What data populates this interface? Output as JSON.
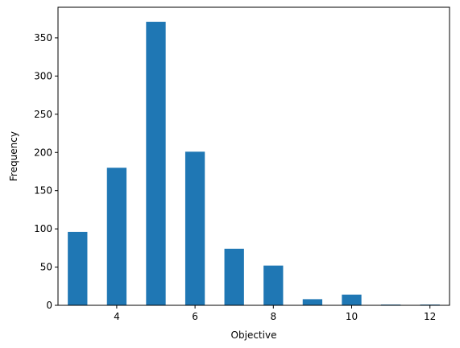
{
  "chart_data": {
    "type": "bar",
    "title": "",
    "xlabel": "Objective",
    "ylabel": "Frequency",
    "xlim": [
      2.5,
      12.5
    ],
    "ylim": [
      0,
      390
    ],
    "bar_width": 0.5,
    "bar_color": "#1f77b4",
    "grid": false,
    "legend": "none",
    "x": [
      3,
      4,
      5,
      6,
      7,
      8,
      9,
      10,
      11,
      12
    ],
    "values": [
      96,
      180,
      371,
      201,
      74,
      52,
      8,
      14,
      1,
      1
    ],
    "x_ticks": [
      4,
      6,
      8,
      10,
      12
    ],
    "x_tick_labels": [
      "4",
      "6",
      "8",
      "10",
      "12"
    ],
    "y_ticks": [
      0,
      50,
      100,
      150,
      200,
      250,
      300,
      350
    ],
    "y_tick_labels": [
      "0",
      "50",
      "100",
      "150",
      "200",
      "250",
      "300",
      "350"
    ]
  }
}
